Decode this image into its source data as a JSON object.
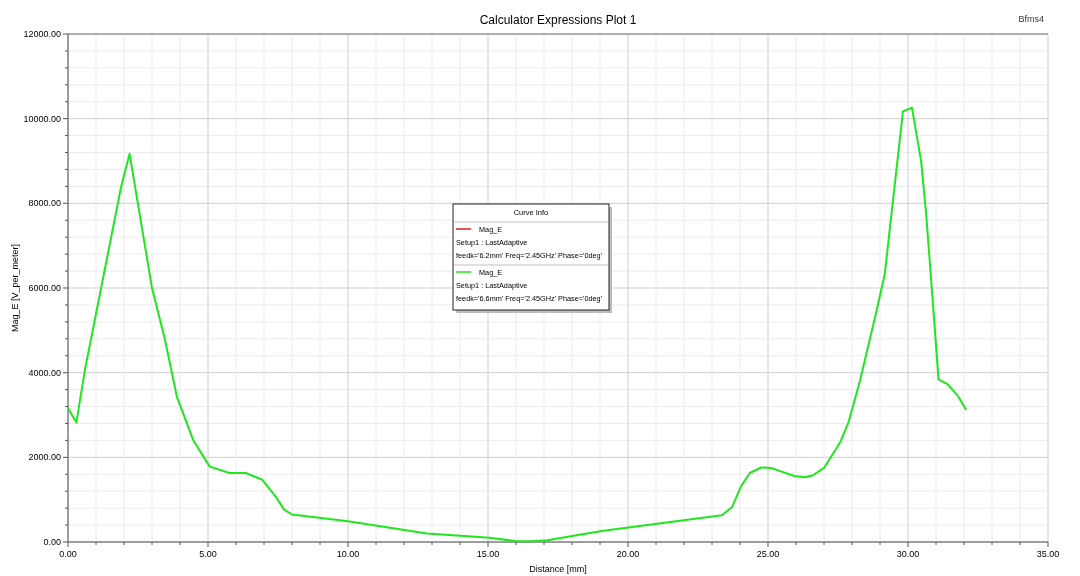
{
  "chart_data": {
    "type": "line",
    "title": "Calculator Expressions Plot 1",
    "xlabel": "Distance [mm]",
    "ylabel": "Mag_E [V_per_meter]",
    "legend_title": "Curve Info",
    "annotations": [
      "Bfms4"
    ],
    "x": [
      0,
      0.3,
      0.6,
      1.9,
      2.2,
      3.0,
      3.47,
      3.89,
      4.47,
      5.06,
      5.77,
      6.35,
      6.94,
      7.41,
      7.71,
      8.0,
      10.0,
      12.82,
      15.06,
      16.0,
      16.54,
      17.12,
      19.06,
      23.35,
      23.71,
      24.04,
      24.35,
      24.76,
      25.1,
      25.94,
      26.3,
      26.59,
      27.0,
      27.59,
      27.88,
      28.29,
      28.88,
      29.17,
      29.82,
      30.14,
      30.47,
      30.65,
      30.9,
      31.09,
      31.41,
      31.76,
      32.08
    ],
    "series": [
      {
        "name": "Mag_E\nSetup1 : LastAdaptive\nfeedk='6.2mm' Freq='2.45GHz' Phase='0deg'",
        "color": "#d42020",
        "values": [
          null,
          null,
          null,
          null,
          null,
          null,
          null,
          null,
          null,
          null,
          null,
          null,
          null,
          null,
          null,
          null,
          null,
          null,
          null,
          null,
          null,
          null,
          null,
          null,
          null,
          null,
          null,
          null,
          null,
          null,
          null,
          null,
          null,
          null,
          null,
          null,
          null,
          null,
          null,
          null,
          null,
          null,
          null,
          null,
          null,
          null,
          null
        ]
      },
      {
        "name": "Mag_E\nSetup1 : LastAdaptive\nfeedk='6.6mm' Freq='2.45GHz' Phase='0deg'",
        "color": "#1fe61f",
        "values": [
          3160,
          2820,
          4050,
          8400,
          9170,
          6000,
          4760,
          3430,
          2410,
          1780,
          1630,
          1630,
          1470,
          1080,
          770,
          650,
          490,
          200,
          100,
          20,
          20,
          40,
          260,
          630,
          820,
          1320,
          1630,
          1760,
          1750,
          1560,
          1530,
          1570,
          1750,
          2370,
          2840,
          3820,
          5470,
          6330,
          10170,
          10260,
          8990,
          7740,
          5550,
          3840,
          3730,
          3470,
          3120
        ]
      }
    ],
    "xlim": [
      0,
      35
    ],
    "xticks": [
      {
        "value": 0,
        "label": "0.00"
      },
      {
        "value": 1,
        "label": null
      },
      {
        "value": 2,
        "label": null
      },
      {
        "value": 3,
        "label": null
      },
      {
        "value": 4,
        "label": null
      },
      {
        "value": 5,
        "label": "5.00"
      },
      {
        "value": 6,
        "label": null
      },
      {
        "value": 7,
        "label": null
      },
      {
        "value": 8,
        "label": null
      },
      {
        "value": 9,
        "label": null
      },
      {
        "value": 10,
        "label": "10.00"
      },
      {
        "value": 11,
        "label": null
      },
      {
        "value": 12,
        "label": null
      },
      {
        "value": 13,
        "label": null
      },
      {
        "value": 14,
        "label": null
      },
      {
        "value": 15,
        "label": "15.00"
      },
      {
        "value": 16,
        "label": null
      },
      {
        "value": 17,
        "label": null
      },
      {
        "value": 18,
        "label": null
      },
      {
        "value": 19,
        "label": null
      },
      {
        "value": 20,
        "label": "20.00"
      },
      {
        "value": 21,
        "label": null
      },
      {
        "value": 22,
        "label": null
      },
      {
        "value": 23,
        "label": null
      },
      {
        "value": 24,
        "label": null
      },
      {
        "value": 25,
        "label": "25.00"
      },
      {
        "value": 26,
        "label": null
      },
      {
        "value": 27,
        "label": null
      },
      {
        "value": 28,
        "label": null
      },
      {
        "value": 29,
        "label": null
      },
      {
        "value": 30,
        "label": "30.00"
      },
      {
        "value": 31,
        "label": null
      },
      {
        "value": 32,
        "label": null
      },
      {
        "value": 33,
        "label": null
      },
      {
        "value": 34,
        "label": null
      },
      {
        "value": 35,
        "label": "35.00"
      }
    ],
    "ylim": [
      0,
      12000
    ],
    "yticks": [
      {
        "value": 0,
        "label": "0.00"
      },
      {
        "value": 400,
        "label": null
      },
      {
        "value": 800,
        "label": null
      },
      {
        "value": 1200,
        "label": null
      },
      {
        "value": 1600,
        "label": null
      },
      {
        "value": 2000,
        "label": "2000.00"
      },
      {
        "value": 2400,
        "label": null
      },
      {
        "value": 2800,
        "label": null
      },
      {
        "value": 3200,
        "label": null
      },
      {
        "value": 3600,
        "label": null
      },
      {
        "value": 4000,
        "label": "4000.00"
      },
      {
        "value": 4400,
        "label": null
      },
      {
        "value": 4800,
        "label": null
      },
      {
        "value": 5200,
        "label": null
      },
      {
        "value": 5600,
        "label": null
      },
      {
        "value": 6000,
        "label": "6000.00"
      },
      {
        "value": 6400,
        "label": null
      },
      {
        "value": 6800,
        "label": null
      },
      {
        "value": 7200,
        "label": null
      },
      {
        "value": 7600,
        "label": null
      },
      {
        "value": 8000,
        "label": "8000.00"
      },
      {
        "value": 8400,
        "label": null
      },
      {
        "value": 8800,
        "label": null
      },
      {
        "value": 9200,
        "label": null
      },
      {
        "value": 9600,
        "label": null
      },
      {
        "value": 10000,
        "label": "10000.00"
      },
      {
        "value": 10400,
        "label": null
      },
      {
        "value": 10800,
        "label": null
      },
      {
        "value": 11200,
        "label": null
      },
      {
        "value": 11600,
        "label": null
      },
      {
        "value": 12000,
        "label": "12000.00"
      }
    ],
    "grid": true,
    "legend": "center",
    "marker": "none",
    "line_style": "solid"
  }
}
